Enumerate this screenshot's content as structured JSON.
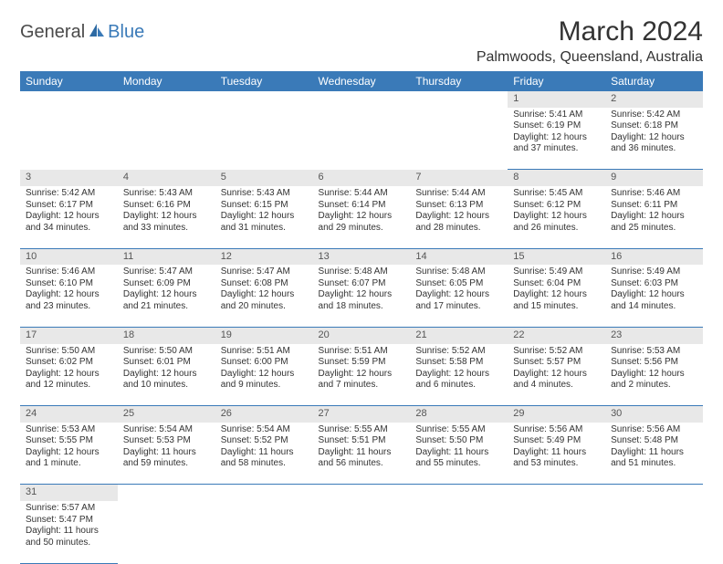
{
  "logo": {
    "part1": "General",
    "part2": "Blue"
  },
  "title": "March 2024",
  "location": "Palmwoods, Queensland, Australia",
  "colors": {
    "header_bg": "#3a7ab8",
    "header_fg": "#ffffff",
    "daynum_bg": "#e8e8e8",
    "row_border": "#3a7ab8",
    "text": "#333333"
  },
  "day_headers": [
    "Sunday",
    "Monday",
    "Tuesday",
    "Wednesday",
    "Thursday",
    "Friday",
    "Saturday"
  ],
  "weeks": [
    [
      null,
      null,
      null,
      null,
      null,
      {
        "n": "1",
        "sr": "Sunrise: 5:41 AM",
        "ss": "Sunset: 6:19 PM",
        "d1": "Daylight: 12 hours",
        "d2": "and 37 minutes."
      },
      {
        "n": "2",
        "sr": "Sunrise: 5:42 AM",
        "ss": "Sunset: 6:18 PM",
        "d1": "Daylight: 12 hours",
        "d2": "and 36 minutes."
      }
    ],
    [
      {
        "n": "3",
        "sr": "Sunrise: 5:42 AM",
        "ss": "Sunset: 6:17 PM",
        "d1": "Daylight: 12 hours",
        "d2": "and 34 minutes."
      },
      {
        "n": "4",
        "sr": "Sunrise: 5:43 AM",
        "ss": "Sunset: 6:16 PM",
        "d1": "Daylight: 12 hours",
        "d2": "and 33 minutes."
      },
      {
        "n": "5",
        "sr": "Sunrise: 5:43 AM",
        "ss": "Sunset: 6:15 PM",
        "d1": "Daylight: 12 hours",
        "d2": "and 31 minutes."
      },
      {
        "n": "6",
        "sr": "Sunrise: 5:44 AM",
        "ss": "Sunset: 6:14 PM",
        "d1": "Daylight: 12 hours",
        "d2": "and 29 minutes."
      },
      {
        "n": "7",
        "sr": "Sunrise: 5:44 AM",
        "ss": "Sunset: 6:13 PM",
        "d1": "Daylight: 12 hours",
        "d2": "and 28 minutes."
      },
      {
        "n": "8",
        "sr": "Sunrise: 5:45 AM",
        "ss": "Sunset: 6:12 PM",
        "d1": "Daylight: 12 hours",
        "d2": "and 26 minutes."
      },
      {
        "n": "9",
        "sr": "Sunrise: 5:46 AM",
        "ss": "Sunset: 6:11 PM",
        "d1": "Daylight: 12 hours",
        "d2": "and 25 minutes."
      }
    ],
    [
      {
        "n": "10",
        "sr": "Sunrise: 5:46 AM",
        "ss": "Sunset: 6:10 PM",
        "d1": "Daylight: 12 hours",
        "d2": "and 23 minutes."
      },
      {
        "n": "11",
        "sr": "Sunrise: 5:47 AM",
        "ss": "Sunset: 6:09 PM",
        "d1": "Daylight: 12 hours",
        "d2": "and 21 minutes."
      },
      {
        "n": "12",
        "sr": "Sunrise: 5:47 AM",
        "ss": "Sunset: 6:08 PM",
        "d1": "Daylight: 12 hours",
        "d2": "and 20 minutes."
      },
      {
        "n": "13",
        "sr": "Sunrise: 5:48 AM",
        "ss": "Sunset: 6:07 PM",
        "d1": "Daylight: 12 hours",
        "d2": "and 18 minutes."
      },
      {
        "n": "14",
        "sr": "Sunrise: 5:48 AM",
        "ss": "Sunset: 6:05 PM",
        "d1": "Daylight: 12 hours",
        "d2": "and 17 minutes."
      },
      {
        "n": "15",
        "sr": "Sunrise: 5:49 AM",
        "ss": "Sunset: 6:04 PM",
        "d1": "Daylight: 12 hours",
        "d2": "and 15 minutes."
      },
      {
        "n": "16",
        "sr": "Sunrise: 5:49 AM",
        "ss": "Sunset: 6:03 PM",
        "d1": "Daylight: 12 hours",
        "d2": "and 14 minutes."
      }
    ],
    [
      {
        "n": "17",
        "sr": "Sunrise: 5:50 AM",
        "ss": "Sunset: 6:02 PM",
        "d1": "Daylight: 12 hours",
        "d2": "and 12 minutes."
      },
      {
        "n": "18",
        "sr": "Sunrise: 5:50 AM",
        "ss": "Sunset: 6:01 PM",
        "d1": "Daylight: 12 hours",
        "d2": "and 10 minutes."
      },
      {
        "n": "19",
        "sr": "Sunrise: 5:51 AM",
        "ss": "Sunset: 6:00 PM",
        "d1": "Daylight: 12 hours",
        "d2": "and 9 minutes."
      },
      {
        "n": "20",
        "sr": "Sunrise: 5:51 AM",
        "ss": "Sunset: 5:59 PM",
        "d1": "Daylight: 12 hours",
        "d2": "and 7 minutes."
      },
      {
        "n": "21",
        "sr": "Sunrise: 5:52 AM",
        "ss": "Sunset: 5:58 PM",
        "d1": "Daylight: 12 hours",
        "d2": "and 6 minutes."
      },
      {
        "n": "22",
        "sr": "Sunrise: 5:52 AM",
        "ss": "Sunset: 5:57 PM",
        "d1": "Daylight: 12 hours",
        "d2": "and 4 minutes."
      },
      {
        "n": "23",
        "sr": "Sunrise: 5:53 AM",
        "ss": "Sunset: 5:56 PM",
        "d1": "Daylight: 12 hours",
        "d2": "and 2 minutes."
      }
    ],
    [
      {
        "n": "24",
        "sr": "Sunrise: 5:53 AM",
        "ss": "Sunset: 5:55 PM",
        "d1": "Daylight: 12 hours",
        "d2": "and 1 minute."
      },
      {
        "n": "25",
        "sr": "Sunrise: 5:54 AM",
        "ss": "Sunset: 5:53 PM",
        "d1": "Daylight: 11 hours",
        "d2": "and 59 minutes."
      },
      {
        "n": "26",
        "sr": "Sunrise: 5:54 AM",
        "ss": "Sunset: 5:52 PM",
        "d1": "Daylight: 11 hours",
        "d2": "and 58 minutes."
      },
      {
        "n": "27",
        "sr": "Sunrise: 5:55 AM",
        "ss": "Sunset: 5:51 PM",
        "d1": "Daylight: 11 hours",
        "d2": "and 56 minutes."
      },
      {
        "n": "28",
        "sr": "Sunrise: 5:55 AM",
        "ss": "Sunset: 5:50 PM",
        "d1": "Daylight: 11 hours",
        "d2": "and 55 minutes."
      },
      {
        "n": "29",
        "sr": "Sunrise: 5:56 AM",
        "ss": "Sunset: 5:49 PM",
        "d1": "Daylight: 11 hours",
        "d2": "and 53 minutes."
      },
      {
        "n": "30",
        "sr": "Sunrise: 5:56 AM",
        "ss": "Sunset: 5:48 PM",
        "d1": "Daylight: 11 hours",
        "d2": "and 51 minutes."
      }
    ],
    [
      {
        "n": "31",
        "sr": "Sunrise: 5:57 AM",
        "ss": "Sunset: 5:47 PM",
        "d1": "Daylight: 11 hours",
        "d2": "and 50 minutes."
      },
      null,
      null,
      null,
      null,
      null,
      null
    ]
  ]
}
